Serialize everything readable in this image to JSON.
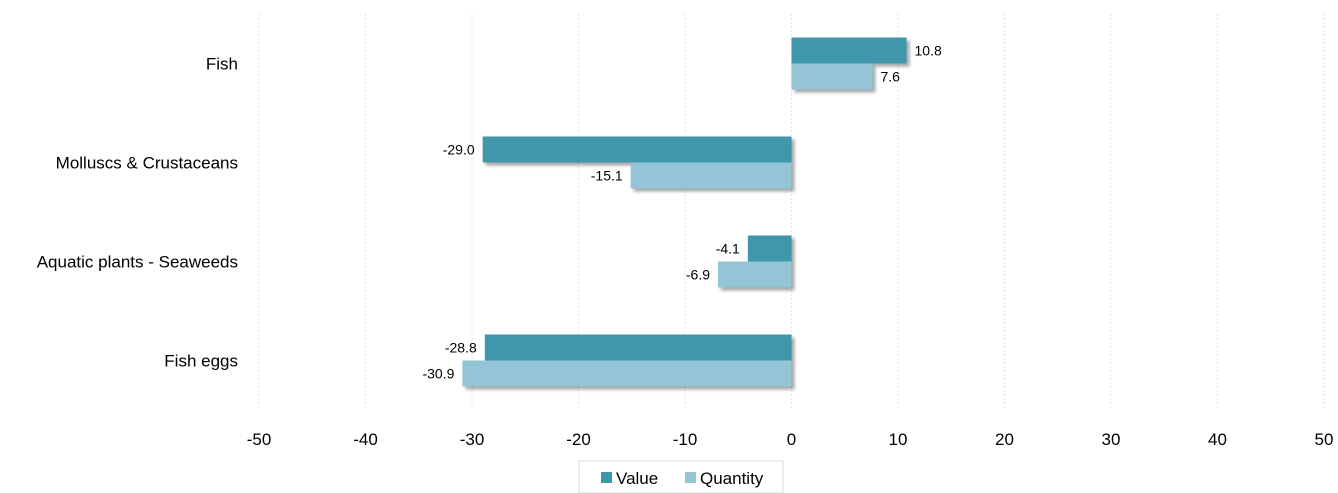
{
  "chart_data": {
    "type": "bar",
    "orientation": "horizontal",
    "categories": [
      "Fish",
      "Molluscs & Crustaceans",
      "Aquatic plants - Seaweeds",
      "Fish eggs"
    ],
    "series": [
      {
        "name": "Value",
        "values": [
          10.8,
          -29.0,
          -4.1,
          -28.8
        ],
        "labels": [
          "10.8",
          "-29.0",
          "-4.1",
          "-28.8"
        ],
        "color": "#3f97ab"
      },
      {
        "name": "Quantity",
        "values": [
          7.6,
          -15.1,
          -6.9,
          -30.9
        ],
        "labels": [
          "7.6",
          "-15.1",
          "-6.9",
          "-30.9"
        ],
        "color": "#93c5d6"
      }
    ],
    "xlim": [
      -50,
      50
    ],
    "xticks": [
      -50,
      -40,
      -30,
      -20,
      -10,
      0,
      10,
      20,
      30,
      40,
      50
    ],
    "xtick_labels": [
      "-50",
      "-40",
      "-30",
      "-20",
      "-10",
      "0",
      "10",
      "20",
      "30",
      "40",
      "50"
    ],
    "grid": true,
    "legend": "bottom-center",
    "title": "",
    "xlabel": "",
    "ylabel": ""
  }
}
